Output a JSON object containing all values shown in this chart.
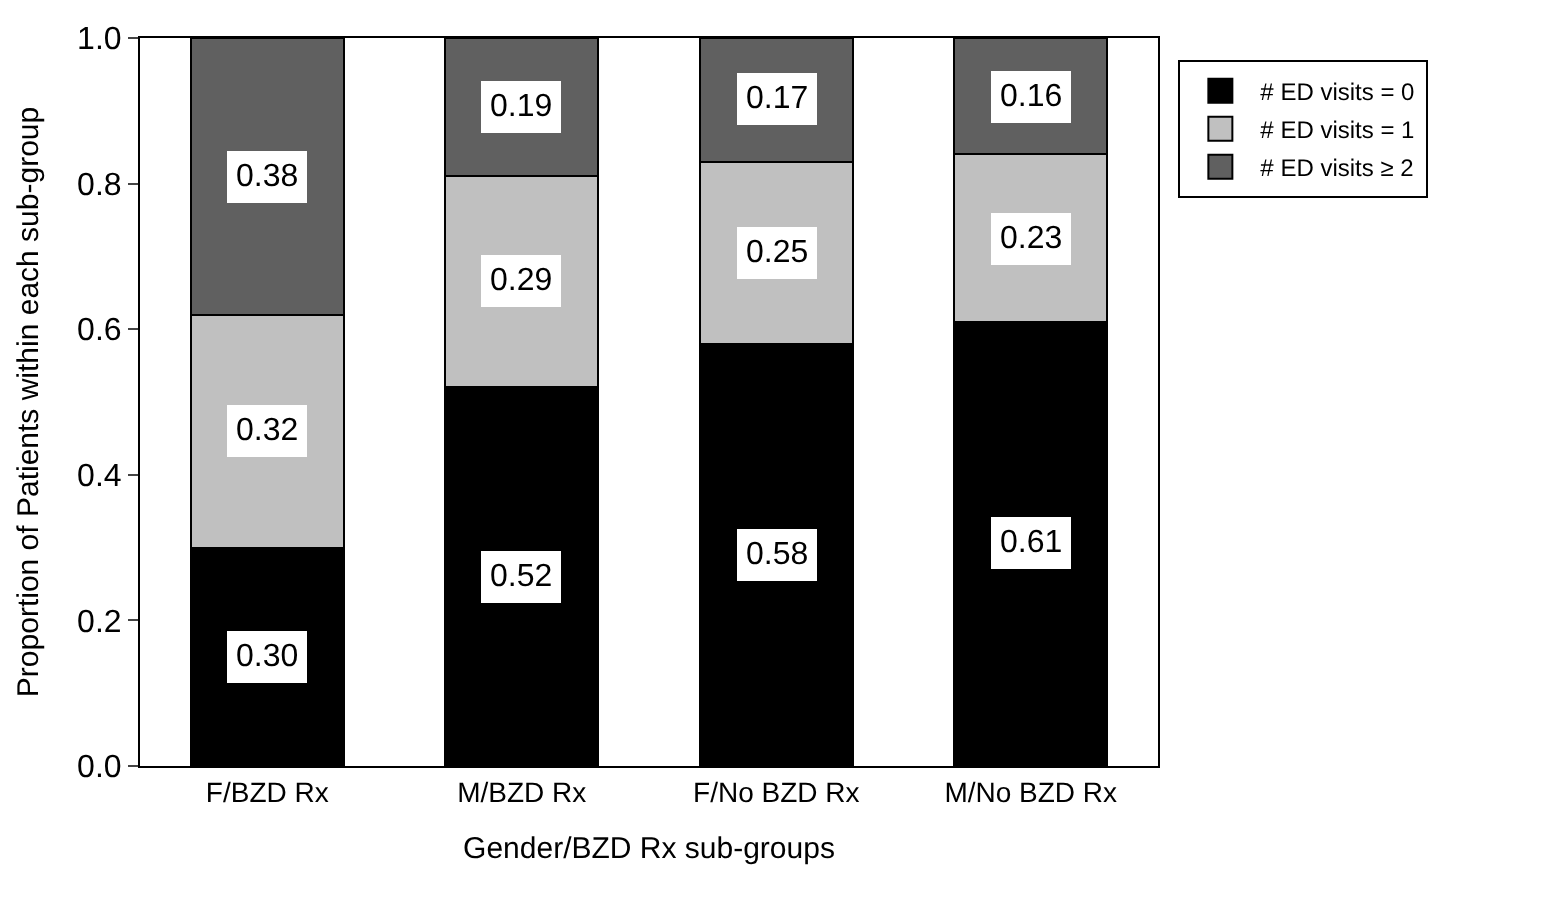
{
  "chart_data": {
    "type": "bar",
    "stacked": true,
    "xlabel": "Gender/BZD Rx sub-groups",
    "ylabel": "Proportion of Patients within each sub-group",
    "categories": [
      "F/BZD Rx",
      "M/BZD Rx",
      "F/No BZD Rx",
      "M/No BZD Rx"
    ],
    "series": [
      {
        "name": "# ED visits = 0",
        "color": "#000000",
        "values": [
          0.3,
          0.52,
          0.58,
          0.61
        ],
        "value_labels": [
          "0.30",
          "0.52",
          "0.58",
          "0.61"
        ]
      },
      {
        "name": "# ED visits = 1",
        "color": "#c0c0c0",
        "values": [
          0.32,
          0.29,
          0.25,
          0.23
        ],
        "value_labels": [
          "0.32",
          "0.29",
          "0.25",
          "0.23"
        ]
      },
      {
        "name": "# ED visits ≥ 2",
        "color": "#606060",
        "values": [
          0.38,
          0.19,
          0.17,
          0.16
        ],
        "value_labels": [
          "0.38",
          "0.19",
          "0.17",
          "0.16"
        ]
      }
    ],
    "ylim": [
      0,
      1.0
    ],
    "yticks": [
      {
        "value": 0,
        "label": "0.0"
      },
      {
        "value": 0.2,
        "label": "0.2"
      },
      {
        "value": 0.4,
        "label": "0.4"
      },
      {
        "value": 0.6,
        "label": "0.6"
      },
      {
        "value": 0.8,
        "label": "0.8"
      },
      {
        "value": 1.0,
        "label": "1.0"
      }
    ],
    "legend": "top right"
  }
}
